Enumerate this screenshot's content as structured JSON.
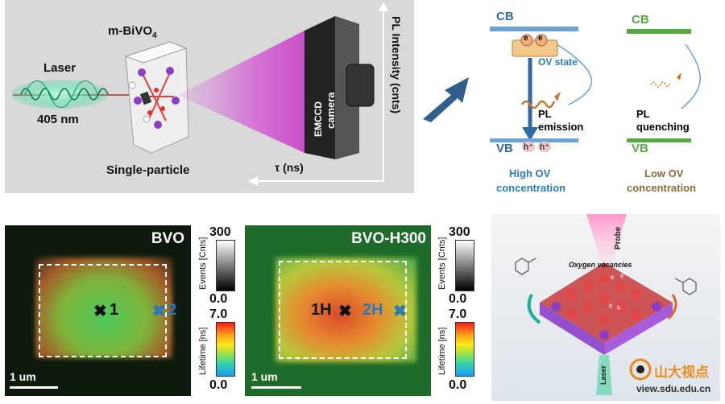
{
  "top_left": {
    "material": "m-BiVO",
    "material_sub": "4",
    "laser_label": "Laser",
    "laser_wavelength": "405 nm",
    "particle_caption": "Single-particle",
    "camera_line1": "EMCCD",
    "camera_line2": "camera",
    "y_axis": "PL Intensity (cnts)",
    "x_axis": "τ (ns)"
  },
  "band_left": {
    "cb": "CB",
    "vb": "VB",
    "ov_state": "OV state",
    "pl_emission_line1": "PL",
    "pl_emission_line2": "emission",
    "caption_line1": "High OV",
    "caption_line2": "concentration",
    "electron": "e",
    "hole": "h⁺"
  },
  "band_right": {
    "cb": "CB",
    "vb": "VB",
    "pl_quench_line1": "PL",
    "pl_quench_line2": "quenching",
    "caption_line1": "Low OV",
    "caption_line2": "concentration"
  },
  "map_bvo": {
    "title": "BVO",
    "marker1": "1",
    "marker2": "2",
    "scale": "1 um"
  },
  "map_h300": {
    "title": "BVO-H300",
    "marker1": "1H",
    "marker2": "2H",
    "scale": "1 um"
  },
  "colorbar": {
    "events_max": "300",
    "events_min": "0.0",
    "events_label": "Events [Cnts]",
    "lifetime_max": "7.0",
    "lifetime_min": "0.0",
    "lifetime_label": "Lifetime [ns]"
  },
  "right_bottom": {
    "probe": "Probe",
    "oxygen_vacancies": "Oxygen vacancies",
    "laser": "Laser",
    "e1": "e",
    "e2": "e⁻",
    "h1": "h",
    "h2": "h"
  },
  "watermark": {
    "name": "山大视点",
    "url": "view.sdu.edu.cn"
  },
  "colors": {
    "panel_gray": "#d9d9d9",
    "cb_blue": "#6aa3d8",
    "band_green": "#5aa845",
    "arrow_blue": "#2e6aa8",
    "pl_orange": "#c8742a",
    "text_blue": "#2a7ab8"
  }
}
